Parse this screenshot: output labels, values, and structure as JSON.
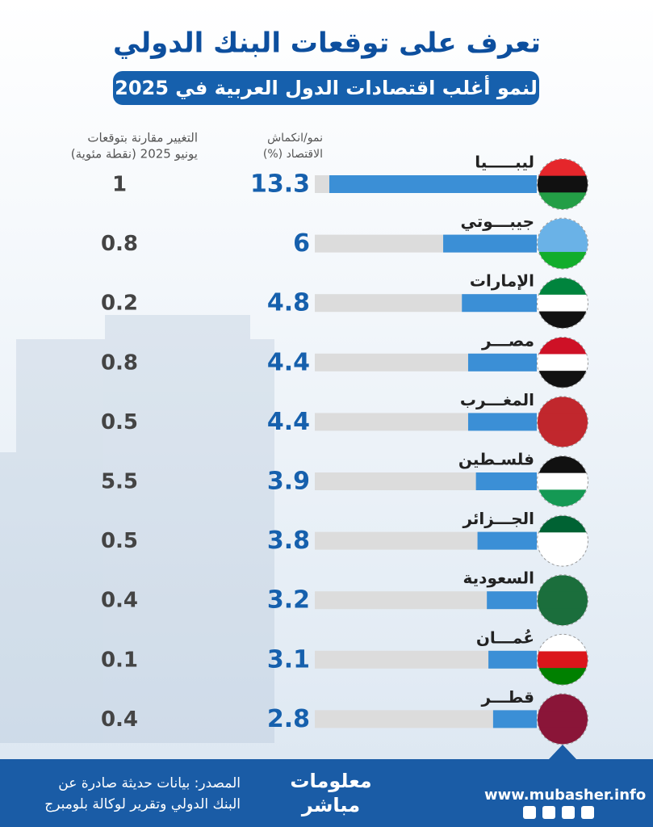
{
  "chart_data": {
    "type": "bar",
    "title": "تعرف على توقعات البنك الدولي",
    "subtitle": "لنمو أغلب اقتصادات الدول العربية في 2025",
    "value_header": [
      "نمو/انكماش",
      "الاقتصاد (%)"
    ],
    "change_header": [
      "التغيير مقارنة بتوقعات",
      "يونيو 2025 (نقطة مئوية)"
    ],
    "categories": [
      "ليبـــــيا",
      "جيبـــوتي",
      "الإمارات",
      "مصـــر",
      "المغـــرب",
      "فلسـطين",
      "الجـــزائر",
      "السعودية",
      "عُمـــان",
      "قطـــر"
    ],
    "values": [
      13.3,
      6,
      4.8,
      4.4,
      4.4,
      3.9,
      3.8,
      3.2,
      3.1,
      2.8
    ],
    "changes": [
      1,
      0.8,
      0.2,
      0.8,
      0.5,
      5.5,
      0.5,
      0.4,
      0.1,
      0.4
    ],
    "color": "#3b8fd6"
  },
  "footer": {
    "source": [
      "المصدر:  بيانات حديثة صادرة عن",
      "البنك الدولي وتقرير لوكالة بلومبرج"
    ],
    "logo": [
      "معلومات",
      "مباشر"
    ],
    "website": "www.mubasher.info"
  }
}
